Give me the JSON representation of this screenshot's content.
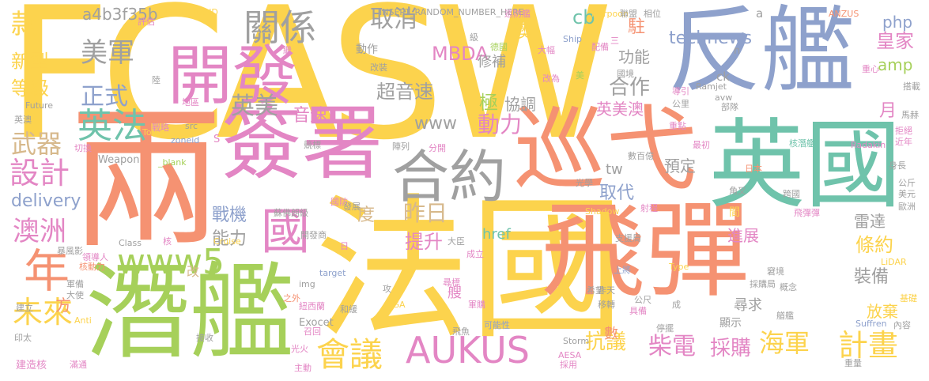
{
  "palette": {
    "yellow": "#fcd34d",
    "pink": "#e386c4",
    "orange": "#f59272",
    "green": "#74c98f",
    "blue": "#8ea1cc",
    "gray": "#a0a0a0",
    "lime": "#a6d05a",
    "tan": "#d7b98c",
    "teal": "#6fc3ab"
  },
  "words": [
    {
      "t": "FCASW",
      "c": "yellow"
    },
    {
      "t": "反艦",
      "c": "blue"
    },
    {
      "t": "兩",
      "c": "orange"
    },
    {
      "t": "法國",
      "c": "yellow"
    },
    {
      "t": "飛彈",
      "c": "orange"
    },
    {
      "t": "英國",
      "c": "teal"
    },
    {
      "t": "簽署",
      "c": "pink"
    },
    {
      "t": "巡弋",
      "c": "orange"
    },
    {
      "t": "潛艦",
      "c": "lime"
    },
    {
      "t": "開發",
      "c": "pink"
    },
    {
      "t": "合約",
      "c": "gray"
    },
    {
      "t": "AUKUS",
      "c": "pink"
    },
    {
      "t": "國",
      "c": "pink"
    },
    {
      "t": "www5",
      "c": "lime"
    },
    {
      "t": "關係",
      "c": "gray"
    },
    {
      "t": "美軍",
      "c": "gray"
    },
    {
      "t": "英法",
      "c": "teal"
    },
    {
      "t": "正式",
      "c": "blue"
    },
    {
      "t": "英美",
      "c": "gray"
    },
    {
      "t": "取消",
      "c": "gray"
    },
    {
      "t": "款",
      "c": "yellow"
    },
    {
      "t": "新型",
      "c": "yellow"
    },
    {
      "t": "等級",
      "c": "yellow"
    },
    {
      "t": "武器",
      "c": "tan"
    },
    {
      "t": "設計",
      "c": "pink"
    },
    {
      "t": "delivery",
      "c": "blue"
    },
    {
      "t": "澳洲",
      "c": "pink"
    },
    {
      "t": "年",
      "c": "orange"
    },
    {
      "t": "未來",
      "c": "yellow"
    },
    {
      "t": "會議",
      "c": "yellow"
    },
    {
      "t": "昨日",
      "c": "tan"
    },
    {
      "t": "度",
      "c": "tan"
    },
    {
      "t": "提升",
      "c": "pink"
    },
    {
      "t": "MBDA",
      "c": "pink"
    },
    {
      "t": "超音速",
      "c": "gray"
    },
    {
      "t": "音速",
      "c": "pink"
    },
    {
      "t": "www",
      "c": "gray"
    },
    {
      "t": "動力",
      "c": "pink"
    },
    {
      "t": "technews",
      "c": "blue"
    },
    {
      "t": "合作",
      "c": "gray"
    },
    {
      "t": "功能",
      "c": "gray"
    },
    {
      "t": "英美澳",
      "c": "pink"
    },
    {
      "t": "預定",
      "c": "gray"
    },
    {
      "t": "取代",
      "c": "blue"
    },
    {
      "t": "tw",
      "c": "gray"
    },
    {
      "t": "戰機",
      "c": "blue"
    },
    {
      "t": "能力",
      "c": "gray"
    },
    {
      "t": "抗議",
      "c": "yellow"
    },
    {
      "t": "柴電",
      "c": "pink"
    },
    {
      "t": "採購",
      "c": "pink"
    },
    {
      "t": "海軍",
      "c": "yellow"
    },
    {
      "t": "計畫",
      "c": "yellow"
    },
    {
      "t": "裝備",
      "c": "gray"
    },
    {
      "t": "條約",
      "c": "yellow"
    },
    {
      "t": "雷達",
      "c": "gray"
    },
    {
      "t": "進展",
      "c": "pink"
    },
    {
      "t": "尋求",
      "c": "gray"
    },
    {
      "t": "放棄",
      "c": "yellow"
    },
    {
      "t": "皇家",
      "c": "pink"
    },
    {
      "t": "amp",
      "c": "lime"
    },
    {
      "t": "php",
      "c": "blue"
    },
    {
      "t": "月",
      "c": "pink"
    },
    {
      "t": "澳",
      "c": "yellow"
    },
    {
      "t": "駐",
      "c": "orange"
    },
    {
      "t": "cb",
      "c": "teal"
    },
    {
      "t": "a4b3f35b",
      "c": "gray"
    },
    {
      "t": "href",
      "c": "teal"
    },
    {
      "t": "Exocet",
      "c": "gray"
    },
    {
      "t": "Storm",
      "c": "gray"
    },
    {
      "t": "INSERT_RANDOM_NUMBER_HERE",
      "c": "gray"
    },
    {
      "t": "INSERT_RAND",
      "c": "yellow"
    },
    {
      "t": "Harpoon",
      "c": "yellow"
    },
    {
      "t": "ANZUS",
      "c": "orange"
    },
    {
      "t": "Weapon",
      "c": "gray"
    },
    {
      "t": "_blank",
      "c": "lime"
    },
    {
      "t": "Radakin",
      "c": "pink"
    },
    {
      "t": "Ramjet",
      "c": "gray"
    },
    {
      "t": "LiDAR",
      "c": "yellow"
    },
    {
      "t": "Suffren",
      "c": "blue"
    },
    {
      "t": "Cruise",
      "c": "yellow"
    },
    {
      "t": "Shadow",
      "c": "yellow"
    },
    {
      "t": "Future",
      "c": "gray"
    },
    {
      "t": "Class",
      "c": "gray"
    },
    {
      "t": "target",
      "c": "blue"
    },
    {
      "t": "Tony",
      "c": "yellow"
    },
    {
      "t": "zoneid",
      "c": "blue"
    },
    {
      "t": "img",
      "c": "gray"
    },
    {
      "t": "DGA",
      "c": "yellow"
    },
    {
      "t": "AESA",
      "c": "pink"
    },
    {
      "t": "Type",
      "c": "yellow"
    },
    {
      "t": "Anti",
      "c": "yellow"
    },
    {
      "t": "src",
      "c": "gray"
    },
    {
      "t": "Ship",
      "c": "blue"
    },
    {
      "t": "avw",
      "c": "gray"
    },
    {
      "t": "ck",
      "c": "gray"
    },
    {
      "t": "n",
      "c": "gray"
    },
    {
      "t": "a",
      "c": "gray"
    },
    {
      "t": "S",
      "c": "pink"
    },
    {
      "t": "改",
      "c": "tan"
    },
    {
      "t": "方",
      "c": "orange"
    },
    {
      "t": "極",
      "c": "lime"
    },
    {
      "t": "數",
      "c": "orange"
    },
    {
      "t": "艘",
      "c": "pink"
    },
    {
      "t": "協調",
      "c": "gray"
    },
    {
      "t": "修補",
      "c": "gray"
    },
    {
      "t": "動作",
      "c": "gray"
    },
    {
      "t": "改裝",
      "c": "gray"
    },
    {
      "t": "巡防艦",
      "c": "pink"
    },
    {
      "t": "蘇佛朗級",
      "c": "gray"
    },
    {
      "t": "開發商",
      "c": "gray"
    },
    {
      "t": "國防",
      "c": "pink"
    },
    {
      "t": "發展",
      "c": "gray"
    },
    {
      "t": "核動力",
      "c": "orange"
    },
    {
      "t": "核潛艦",
      "c": "teal"
    },
    {
      "t": "日本",
      "c": "orange"
    },
    {
      "t": "角叉",
      "c": "gray"
    },
    {
      "t": "數百億",
      "c": "gray"
    },
    {
      "t": "重點",
      "c": "pink"
    },
    {
      "t": "部隊",
      "c": "gray"
    },
    {
      "t": "最初",
      "c": "pink"
    },
    {
      "t": "飛彈彈",
      "c": "pink"
    },
    {
      "t": "跨國",
      "c": "gray"
    },
    {
      "t": "支援局",
      "c": "gray"
    },
    {
      "t": "上將",
      "c": "blue"
    },
    {
      "t": "移轉",
      "c": "gray"
    },
    {
      "t": "希望",
      "c": "gray"
    },
    {
      "t": "昨天",
      "c": "gray"
    },
    {
      "t": "具備",
      "c": "pink"
    },
    {
      "t": "公尺",
      "c": "gray"
    },
    {
      "t": "停擺",
      "c": "gray"
    },
    {
      "t": "顯示",
      "c": "gray"
    },
    {
      "t": "窘境",
      "c": "gray"
    },
    {
      "t": "採購局",
      "c": "gray"
    },
    {
      "t": "概念",
      "c": "gray"
    },
    {
      "t": "艏艦",
      "c": "gray"
    },
    {
      "t": "公斤",
      "c": "gray"
    },
    {
      "t": "美元",
      "c": "gray"
    },
    {
      "t": "歐洲",
      "c": "gray"
    },
    {
      "t": "重量",
      "c": "gray"
    },
    {
      "t": "內容",
      "c": "gray"
    },
    {
      "t": "基礎",
      "c": "yellow"
    },
    {
      "t": "身長",
      "c": "gray"
    },
    {
      "t": "拒絕",
      "c": "pink"
    },
    {
      "t": "近年",
      "c": "pink"
    },
    {
      "t": "馬赫",
      "c": "gray"
    },
    {
      "t": "搭載",
      "c": "gray"
    },
    {
      "t": "重心",
      "c": "pink"
    },
    {
      "t": "相位",
      "c": "gray"
    },
    {
      "t": "導引",
      "c": "pink"
    },
    {
      "t": "公里",
      "c": "gray"
    },
    {
      "t": "聯盟",
      "c": "gray"
    },
    {
      "t": "國境",
      "c": "gray"
    },
    {
      "t": "美",
      "c": "lime"
    },
    {
      "t": "大幅",
      "c": "pink"
    },
    {
      "t": "改為",
      "c": "pink"
    },
    {
      "t": "德國",
      "c": "lime"
    },
    {
      "t": "配備",
      "c": "pink"
    },
    {
      "t": "級",
      "c": "gray"
    },
    {
      "t": "繼",
      "c": "pink"
    },
    {
      "t": "評估",
      "c": "pink"
    },
    {
      "t": "陸",
      "c": "gray"
    },
    {
      "t": "地區",
      "c": "pink"
    },
    {
      "t": "英澳",
      "c": "gray"
    },
    {
      "t": "戰略",
      "c": "pink"
    },
    {
      "t": "切換",
      "c": "pink"
    },
    {
      "t": "競標",
      "c": "gray"
    },
    {
      "t": "陣列",
      "c": "gray"
    },
    {
      "t": "分開",
      "c": "pink"
    },
    {
      "t": "暴風影",
      "c": "gray"
    },
    {
      "t": "領導人",
      "c": "pink"
    },
    {
      "t": "軍備",
      "c": "gray"
    },
    {
      "t": "大使",
      "c": "gray"
    },
    {
      "t": "建立",
      "c": "gray"
    },
    {
      "t": "印太",
      "c": "gray"
    },
    {
      "t": "之外",
      "c": "orange"
    },
    {
      "t": "紐西蘭",
      "c": "pink"
    },
    {
      "t": "召回",
      "c": "pink"
    },
    {
      "t": "光火",
      "c": "pink"
    },
    {
      "t": "接收",
      "c": "gray"
    },
    {
      "t": "建造核",
      "c": "pink"
    },
    {
      "t": "滿通",
      "c": "pink"
    },
    {
      "t": "主動",
      "c": "pink"
    },
    {
      "t": "和緩",
      "c": "gray"
    },
    {
      "t": "攻",
      "c": "gray"
    },
    {
      "t": "成立",
      "c": "pink"
    },
    {
      "t": "大臣",
      "c": "gray"
    },
    {
      "t": "尋標",
      "c": "pink"
    },
    {
      "t": "軍購",
      "c": "pink"
    },
    {
      "t": "可能性",
      "c": "blue"
    },
    {
      "t": "採用",
      "c": "pink"
    },
    {
      "t": "飛魚",
      "c": "gray"
    },
    {
      "t": "光學",
      "c": "gray"
    },
    {
      "t": "射程",
      "c": "pink"
    },
    {
      "t": "日",
      "c": "pink"
    },
    {
      "t": "核",
      "c": "pink"
    },
    {
      "t": "三",
      "c": "pink"
    },
    {
      "t": "成",
      "c": "gray"
    },
    {
      "t": "間",
      "c": "yellow"
    }
  ]
}
